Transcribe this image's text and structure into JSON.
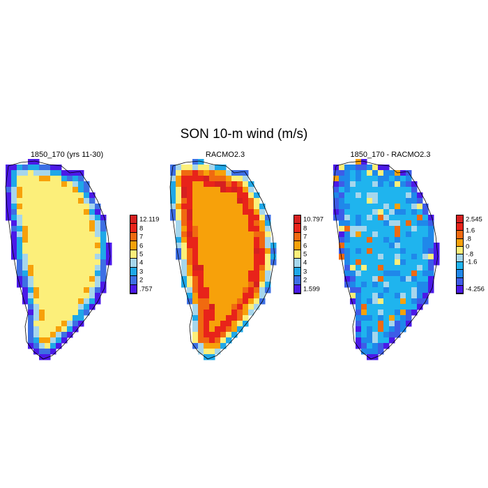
{
  "figure": {
    "title": "SON 10-m wind (m/s)"
  },
  "panels": [
    {
      "title": "1850_170 (yrs 11-30)",
      "colorbar": {
        "labels": [
          "12.119",
          "8",
          "7",
          "6",
          "5",
          "4",
          "3",
          "2",
          ".757"
        ],
        "colors": [
          "#d62020",
          "#e8231a",
          "#f06a10",
          "#f7a10a",
          "#fcef7a",
          "#a6d6ec",
          "#1fa8e8",
          "#3d6fe4",
          "#4b19e8"
        ]
      }
    },
    {
      "title": "RACMO2.3",
      "colorbar": {
        "labels": [
          "10.797",
          "8",
          "7",
          "6",
          "5",
          "4",
          "3",
          "2",
          "1.599"
        ],
        "colors": [
          "#d62020",
          "#e8231a",
          "#f06a10",
          "#f7a10a",
          "#fcef7a",
          "#a6d6ec",
          "#1fa8e8",
          "#3d6fe4",
          "#4b19e8"
        ]
      }
    },
    {
      "title": "1850_170 - RACMO2.3",
      "colorbar": {
        "labels": [
          "2.545",
          "1.6",
          ".8",
          "0",
          "-.8",
          "-1.6",
          "-4.256"
        ],
        "colors": [
          "#d62020",
          "#e8231a",
          "#f06a10",
          "#f7a10a",
          "#fcef7a",
          "#a6d6ec",
          "#1fb4ee",
          "#1f88ea",
          "#3d5ce8",
          "#4b19e8"
        ]
      }
    }
  ]
}
